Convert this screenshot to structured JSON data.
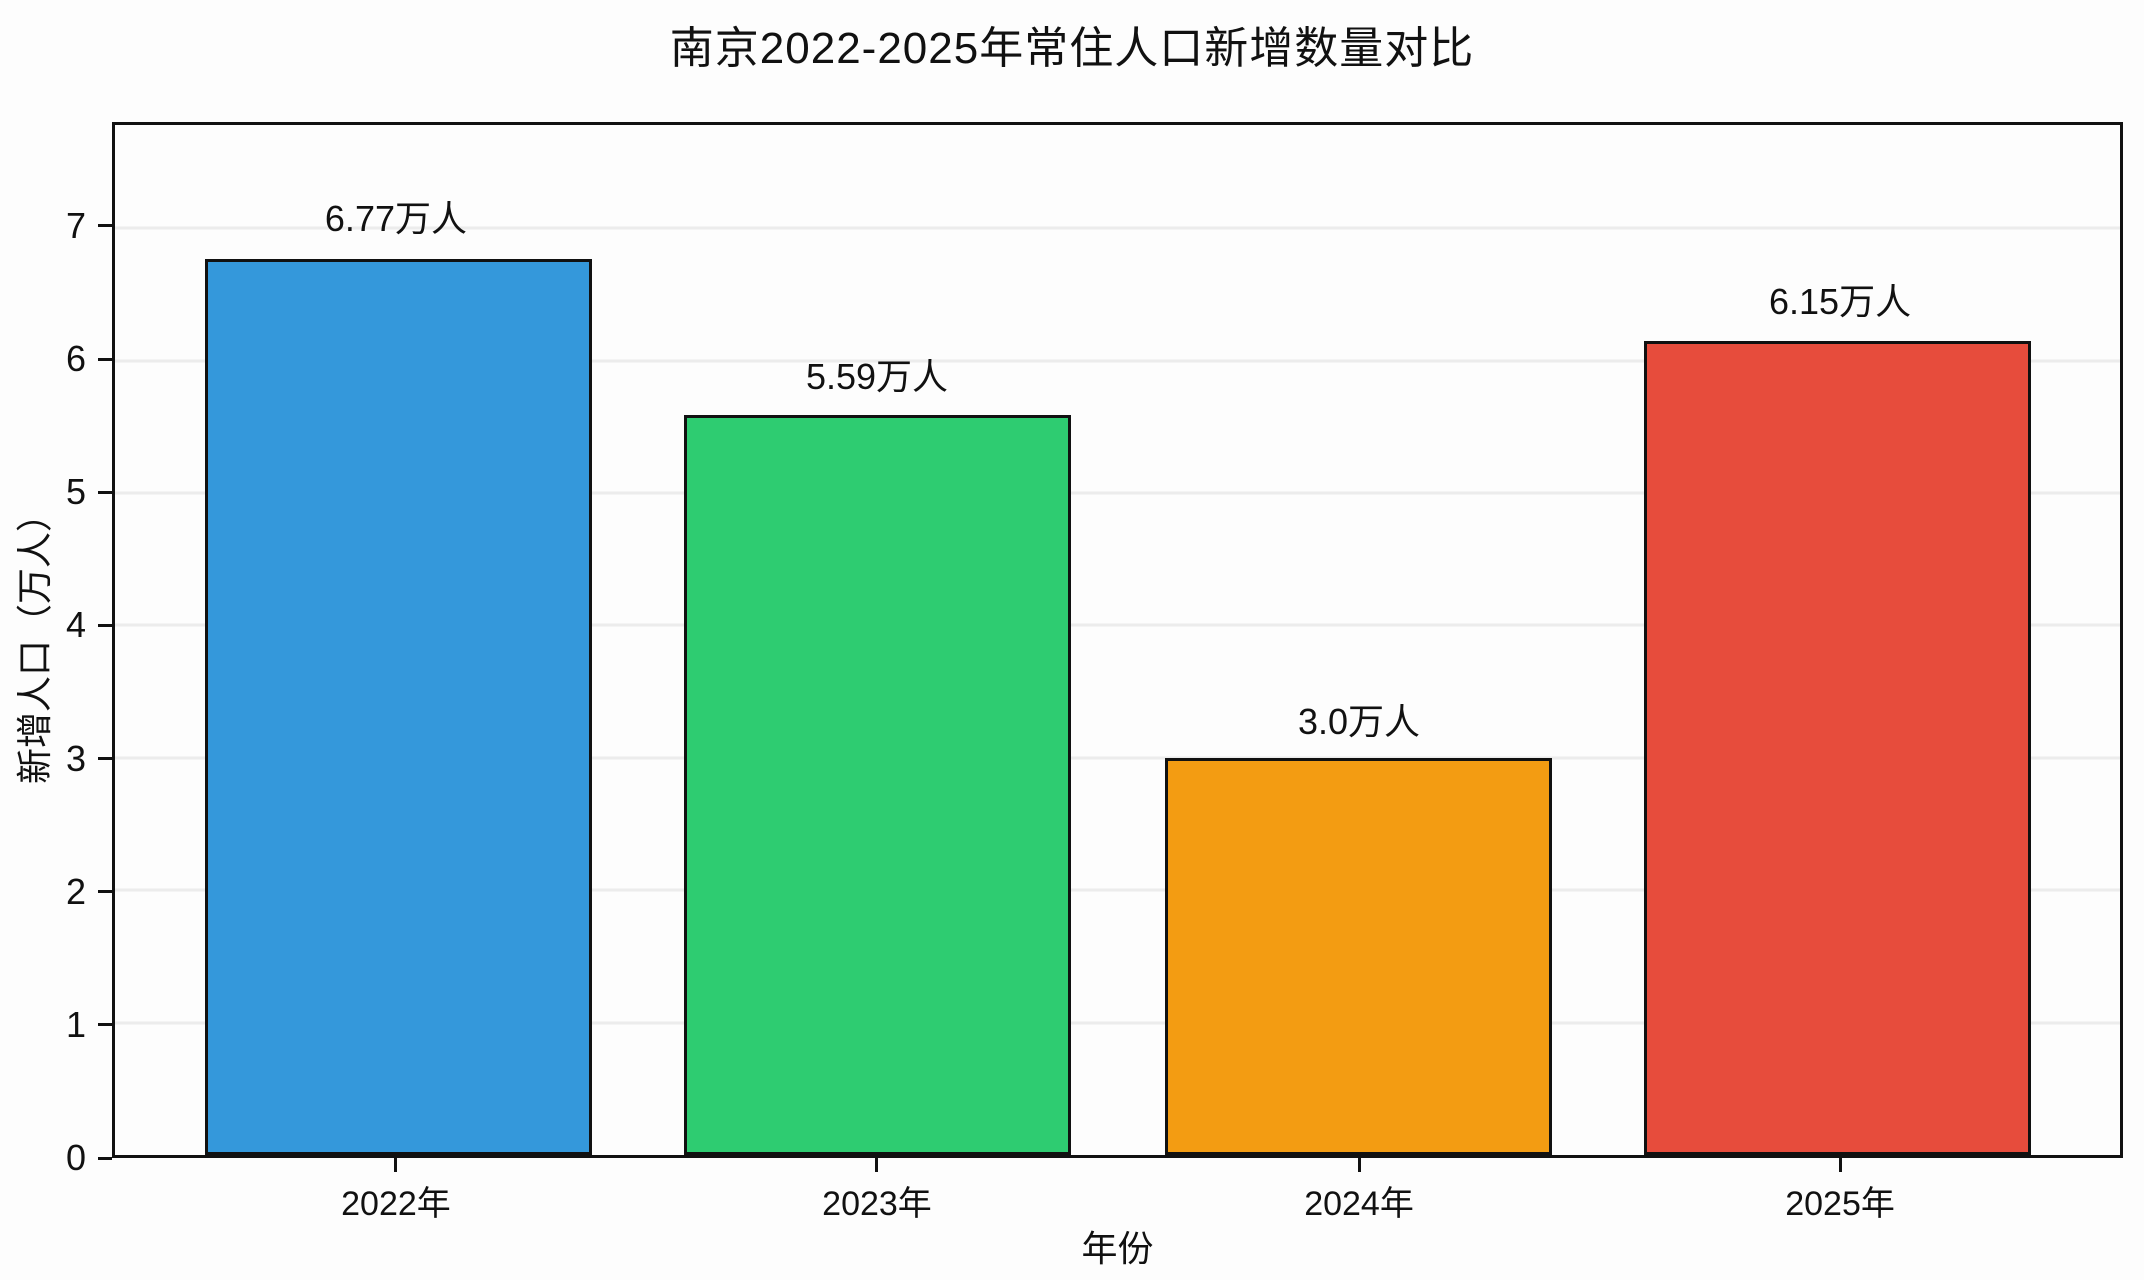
{
  "chart_data": {
    "type": "bar",
    "title": "南京2022-2025年常住人口新增数量对比",
    "xlabel": "年份",
    "ylabel": "新增人口（万人）",
    "categories": [
      "2022年",
      "2023年",
      "2024年",
      "2025年"
    ],
    "values": [
      6.77,
      5.59,
      3.0,
      6.15
    ],
    "value_labels": [
      "6.77万人",
      "5.59万人",
      "3.0万人",
      "6.15万人"
    ],
    "bar_colors": [
      "#3498db",
      "#2ecc71",
      "#f39c12",
      "#e74c3c"
    ],
    "yticks": [
      0,
      1,
      2,
      3,
      4,
      5,
      6,
      7
    ],
    "ylim": [
      0,
      7.78
    ],
    "grid": true,
    "legend": null
  },
  "style": {
    "bar_edge_color": "#111111",
    "grid_color": "#ececec",
    "axis_color": "#111111",
    "text_color": "#111111",
    "background": "#fdfdfd"
  }
}
